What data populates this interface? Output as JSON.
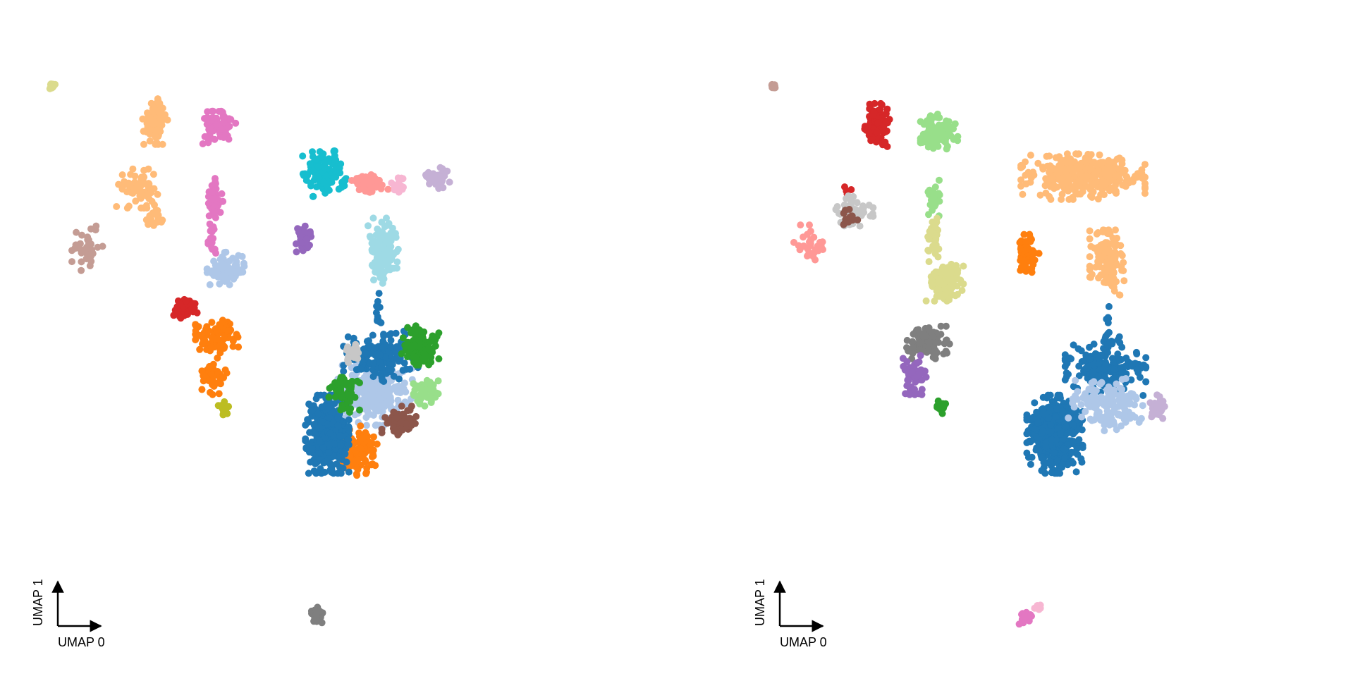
{
  "chart_data": [
    {
      "type": "scatter",
      "title": "",
      "xlabel": "UMAP 0",
      "ylabel": "UMAP 1",
      "grid": false,
      "legend": "none",
      "xlim": [
        0,
        100
      ],
      "ylim": [
        0,
        100
      ],
      "point_radius": 5,
      "series": [
        {
          "color": "#dbdb8d",
          "clusters": [
            [
              4.2,
              93.9,
              0.6,
              0.6,
              14
            ]
          ]
        },
        {
          "color": "#ffbb78",
          "clusters": [
            [
              22.5,
              87.8,
              2.0,
              3.5,
              90
            ],
            [
              19.5,
              76.5,
              3.5,
              3.0,
              70
            ],
            [
              22.4,
              71.2,
              1.3,
              1.5,
              20
            ]
          ]
        },
        {
          "color": "#e377c2",
          "clusters": [
            [
              33.7,
              86.8,
              2.8,
              2.5,
              80
            ],
            [
              33.1,
              75.1,
              1.3,
              3.5,
              50
            ],
            [
              32.5,
              68.0,
              0.8,
              2.5,
              25
            ]
          ]
        },
        {
          "color": "#c49c94",
          "clusters": [
            [
              10.5,
              66.5,
              2.5,
              3.5,
              30
            ]
          ]
        },
        {
          "color": "#aec7e8",
          "clusters": [
            [
              35.0,
              63.0,
              3.0,
              2.5,
              70
            ],
            [
              61.5,
              42.0,
              6.0,
              5.0,
              260
            ]
          ]
        },
        {
          "color": "#d62728",
          "clusters": [
            [
              28.0,
              56.5,
              2.0,
              2.0,
              45
            ]
          ]
        },
        {
          "color": "#ff7f0e",
          "clusters": [
            [
              33.5,
              51.5,
              3.5,
              2.5,
              90
            ],
            [
              33.0,
              45.0,
              2.0,
              3.0,
              40
            ],
            [
              59.0,
              32.0,
              3.0,
              4.0,
              90
            ]
          ]
        },
        {
          "color": "#bcbd22",
          "clusters": [
            [
              34.7,
              39.4,
              0.9,
              1.0,
              18
            ]
          ]
        },
        {
          "color": "#17becf",
          "clusters": [
            [
              52.5,
              79.0,
              3.5,
              3.5,
              130
            ]
          ]
        },
        {
          "color": "#ff9896",
          "clusters": [
            [
              60.5,
              77.5,
              3.0,
              1.5,
              60
            ]
          ]
        },
        {
          "color": "#f7b6d2",
          "clusters": [
            [
              65.5,
              77.0,
              1.2,
              1.5,
              20
            ]
          ]
        },
        {
          "color": "#c5b0d5",
          "clusters": [
            [
              72.5,
              78.5,
              2.0,
              1.8,
              45
            ]
          ]
        },
        {
          "color": "#9edae5",
          "clusters": [
            [
              63.0,
              66.0,
              2.5,
              5.0,
              120
            ]
          ]
        },
        {
          "color": "#9467bd",
          "clusters": [
            [
              49.0,
              68.0,
              2.0,
              2.0,
              40
            ]
          ]
        },
        {
          "color": "#1f77b4",
          "clusters": [
            [
              62.5,
              48.0,
              6.0,
              4.0,
              160
            ],
            [
              53.0,
              35.0,
              3.5,
              6.0,
              380
            ],
            [
              62.0,
              55.5,
              0.5,
              3.0,
              12
            ]
          ]
        },
        {
          "color": "#2ca02c",
          "clusters": [
            [
              69.5,
              50.0,
              3.0,
              3.0,
              110
            ],
            [
              56.0,
              42.0,
              2.5,
              3.0,
              60
            ]
          ]
        },
        {
          "color": "#98df8a",
          "clusters": [
            [
              70.5,
              42.0,
              2.0,
              2.5,
              50
            ]
          ]
        },
        {
          "color": "#8c564b",
          "clusters": [
            [
              66.0,
              37.0,
              3.0,
              2.5,
              65
            ]
          ]
        },
        {
          "color": "#c7c7c7",
          "clusters": [
            [
              57.5,
              48.5,
              1.2,
              1.5,
              22
            ]
          ]
        },
        {
          "color": "#7f7f7f",
          "clusters": [
            [
              51.3,
              4.5,
              1.0,
              1.2,
              30
            ]
          ]
        }
      ]
    },
    {
      "type": "scatter",
      "title": "",
      "xlabel": "UMAP 0",
      "ylabel": "UMAP 1",
      "grid": false,
      "legend": "none",
      "xlim": [
        0,
        100
      ],
      "ylim": [
        0,
        100
      ],
      "point_radius": 5,
      "series": [
        {
          "color": "#c49c94",
          "clusters": [
            [
              4.2,
              93.8,
              0.6,
              0.6,
              12
            ]
          ]
        },
        {
          "color": "#d62728",
          "clusters": [
            [
              22.5,
              87.0,
              2.0,
              3.5,
              110
            ],
            [
              17.0,
              76.0,
              1.0,
              1.0,
              4
            ]
          ]
        },
        {
          "color": "#98df8a",
          "clusters": [
            [
              33.5,
              86.0,
              3.0,
              3.0,
              90
            ],
            [
              32.5,
              75.0,
              1.2,
              3.0,
              30
            ]
          ]
        },
        {
          "color": "#c7c7c7",
          "clusters": [
            [
              18.5,
              72.5,
              3.0,
              2.5,
              60
            ]
          ]
        },
        {
          "color": "#8c564b",
          "clusters": [
            [
              17.5,
              71.5,
              2.0,
              1.5,
              15
            ]
          ]
        },
        {
          "color": "#ff9896",
          "clusters": [
            [
              10.5,
              66.5,
              2.5,
              3.5,
              30
            ]
          ]
        },
        {
          "color": "#dbdb8d",
          "clusters": [
            [
              32.5,
              68.0,
              1.0,
              3.5,
              40
            ],
            [
              34.5,
              60.5,
              3.0,
              3.0,
              110
            ]
          ]
        },
        {
          "color": "#7f7f7f",
          "clusters": [
            [
              31.5,
              50.5,
              3.5,
              2.5,
              90
            ]
          ]
        },
        {
          "color": "#9467bd",
          "clusters": [
            [
              29.0,
              45.0,
              2.0,
              3.0,
              50
            ]
          ]
        },
        {
          "color": "#2ca02c",
          "clusters": [
            [
              33.7,
              39.6,
              0.9,
              1.0,
              20
            ]
          ]
        },
        {
          "color": "#ffbb78",
          "clusters": [
            [
              59.0,
              78.5,
              10.0,
              3.5,
              320
            ],
            [
              63.5,
              64.0,
              3.0,
              5.0,
              130
            ]
          ]
        },
        {
          "color": "#ff7f0e",
          "clusters": [
            [
              49.0,
              65.5,
              2.0,
              3.0,
              50
            ]
          ]
        },
        {
          "color": "#1f77b4",
          "clusters": [
            [
              63.0,
              46.5,
              6.5,
              4.5,
              200
            ],
            [
              54.0,
              35.0,
              4.5,
              6.0,
              480
            ],
            [
              63.5,
              53.5,
              0.5,
              3.0,
              10
            ]
          ]
        },
        {
          "color": "#aec7e8",
          "clusters": [
            [
              63.0,
              40.0,
              6.0,
              4.0,
              150
            ]
          ]
        },
        {
          "color": "#c5b0d5",
          "clusters": [
            [
              72.0,
              39.5,
              1.5,
              2.0,
              30
            ]
          ]
        },
        {
          "color": "#e377c2",
          "clusters": [
            [
              48.8,
              4.0,
              1.0,
              1.0,
              30
            ]
          ]
        },
        {
          "color": "#f7b6d2",
          "clusters": [
            [
              51.0,
              5.8,
              0.8,
              0.8,
              10
            ]
          ]
        }
      ]
    }
  ]
}
